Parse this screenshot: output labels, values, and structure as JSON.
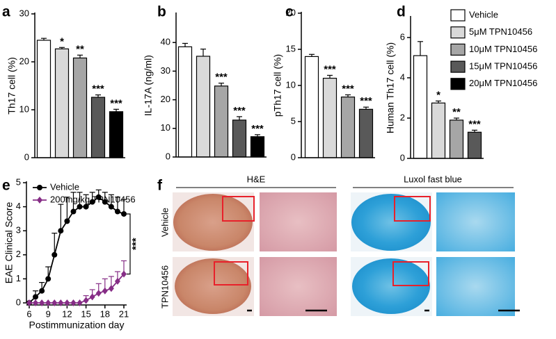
{
  "chart_data": [
    {
      "type": "bar",
      "label": "a",
      "ylabel": "Th17 cell (%)",
      "ylim": [
        0,
        30
      ],
      "yticks": [
        0,
        10,
        20,
        30
      ],
      "values": [
        24.5,
        22.7,
        20.8,
        12.6,
        9.6
      ],
      "errors": [
        0.4,
        0.3,
        0.6,
        0.5,
        0.5
      ],
      "colors": [
        "#ffffff",
        "#d9d9d9",
        "#a6a6a6",
        "#595959",
        "#000000"
      ],
      "annotations": [
        null,
        "*",
        "**",
        "***",
        "***"
      ]
    },
    {
      "type": "bar",
      "label": "b",
      "ylabel": "IL-17A (ng/ml)",
      "ylim": [
        0,
        50
      ],
      "yticks": [
        0,
        10,
        20,
        30,
        40
      ],
      "values": [
        38.5,
        35.2,
        24.8,
        12.9,
        7.1
      ],
      "errors": [
        1.2,
        2.5,
        1.0,
        1.2,
        0.7
      ],
      "colors": [
        "#ffffff",
        "#d9d9d9",
        "#a6a6a6",
        "#595959",
        "#000000"
      ],
      "annotations": [
        null,
        null,
        "***",
        "***",
        "***"
      ]
    },
    {
      "type": "bar",
      "label": "c",
      "ylabel": "pTh17 cell (%)",
      "ylim": [
        0,
        20
      ],
      "yticks": [
        0,
        5,
        10,
        15,
        20
      ],
      "values": [
        14.0,
        11.0,
        8.4,
        6.7
      ],
      "errors": [
        0.3,
        0.4,
        0.3,
        0.3
      ],
      "colors": [
        "#ffffff",
        "#d9d9d9",
        "#a6a6a6",
        "#595959"
      ],
      "annotations": [
        null,
        "***",
        "***",
        "***"
      ]
    },
    {
      "type": "bar",
      "label": "d",
      "ylabel": "Human Th17 cell (%)",
      "ylim": [
        0,
        7
      ],
      "yticks": [
        0,
        2,
        4,
        6
      ],
      "values": [
        5.1,
        2.75,
        1.9,
        1.3
      ],
      "errors": [
        0.7,
        0.1,
        0.1,
        0.1
      ],
      "colors": [
        "#ffffff",
        "#d9d9d9",
        "#a6a6a6",
        "#595959"
      ],
      "annotations": [
        null,
        "*",
        "**",
        "***"
      ],
      "legend": [
        {
          "name": "Vehicle",
          "color": "#ffffff"
        },
        {
          "name": "5μM TPN10456",
          "color": "#d9d9d9"
        },
        {
          "name": "10μM TPN10456",
          "color": "#a6a6a6"
        },
        {
          "name": "15μM TPN10456",
          "color": "#595959"
        },
        {
          "name": "20μM TPN10456",
          "color": "#000000"
        }
      ]
    },
    {
      "type": "line",
      "label": "e",
      "xlabel": "Postimmunization day",
      "ylabel": "EAE Clinical Score",
      "xlim": [
        6,
        21
      ],
      "xticks": [
        6,
        9,
        12,
        15,
        18,
        21
      ],
      "ylim": [
        0,
        5
      ],
      "yticks": [
        0,
        1,
        2,
        3,
        4,
        5
      ],
      "x": [
        6,
        7,
        8,
        9,
        10,
        11,
        12,
        13,
        14,
        15,
        16,
        17,
        18,
        19,
        20,
        21
      ],
      "series": [
        {
          "name": "Vehicle",
          "color": "#000000",
          "marker": "circle",
          "values": [
            0,
            0.25,
            0.5,
            1.0,
            2.0,
            3.0,
            3.4,
            3.8,
            4.0,
            4.0,
            4.2,
            4.4,
            4.2,
            4.0,
            3.8,
            3.7
          ],
          "errors": [
            0,
            0.25,
            0.35,
            0.5,
            0.9,
            1.1,
            1.0,
            0.8,
            0.6,
            0.5,
            0.4,
            0.3,
            0.4,
            0.5,
            0.6,
            0.6
          ]
        },
        {
          "name": "200mg/kg TPN10456",
          "color": "#862d86",
          "marker": "diamond",
          "values": [
            0,
            0,
            0,
            0,
            0,
            0,
            0,
            0,
            0,
            0.1,
            0.25,
            0.4,
            0.5,
            0.6,
            0.9,
            1.2
          ],
          "errors": [
            0,
            0,
            0,
            0,
            0,
            0,
            0,
            0,
            0,
            0.2,
            0.3,
            0.4,
            0.5,
            0.5,
            0.4,
            0.55
          ]
        }
      ],
      "annotation": "***"
    }
  ],
  "images": {
    "label": "f",
    "columns": [
      "H&E",
      "Luxol fast blue"
    ],
    "rows": [
      "Vehicle",
      "TPN10456"
    ]
  }
}
